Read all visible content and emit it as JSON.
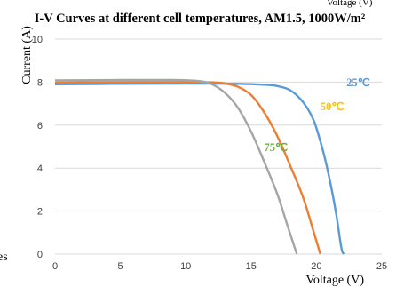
{
  "header": {
    "top_fragment": "Voltage (V)",
    "left_fragment": "es"
  },
  "chart_data": {
    "type": "line",
    "title": "I-V Curves at different cell temperatures, AM1.5, 1000W/m²",
    "xlabel": "Voltage (V)",
    "ylabel": "Current (A)",
    "xlim": [
      0,
      25
    ],
    "ylim": [
      0,
      10
    ],
    "x_ticks": [
      "0",
      "5",
      "10",
      "15",
      "20",
      "25"
    ],
    "y_ticks": [
      "0",
      "2",
      "4",
      "6",
      "8",
      "10"
    ],
    "grid": "horizontal",
    "series": [
      {
        "name": "25℃",
        "color": "#5b9bd5",
        "points": [
          [
            0,
            7.9
          ],
          [
            5,
            7.92
          ],
          [
            10,
            7.93
          ],
          [
            12,
            7.93
          ],
          [
            14,
            7.92
          ],
          [
            16,
            7.88
          ],
          [
            17,
            7.82
          ],
          [
            18,
            7.62
          ],
          [
            19,
            7.05
          ],
          [
            19.8,
            6.2
          ],
          [
            20.5,
            4.8
          ],
          [
            21,
            3.5
          ],
          [
            21.5,
            1.9
          ],
          [
            21.9,
            0.3
          ],
          [
            22.1,
            0
          ]
        ]
      },
      {
        "name": "50℃",
        "color": "#ed7d31",
        "points": [
          [
            0,
            7.98
          ],
          [
            5,
            8.0
          ],
          [
            10,
            8.0
          ],
          [
            12,
            7.99
          ],
          [
            13,
            7.94
          ],
          [
            14,
            7.78
          ],
          [
            15,
            7.4
          ],
          [
            16,
            6.6
          ],
          [
            17,
            5.5
          ],
          [
            18,
            4.1
          ],
          [
            19,
            2.6
          ],
          [
            19.8,
            1.0
          ],
          [
            20.3,
            0
          ]
        ]
      },
      {
        "name": "75℃",
        "color": "#a5a5a5",
        "points": [
          [
            0,
            8.08
          ],
          [
            5,
            8.1
          ],
          [
            9,
            8.1
          ],
          [
            11,
            8.05
          ],
          [
            12,
            7.9
          ],
          [
            13,
            7.5
          ],
          [
            14,
            6.8
          ],
          [
            15,
            5.7
          ],
          [
            16,
            4.3
          ],
          [
            17,
            2.8
          ],
          [
            17.8,
            1.3
          ],
          [
            18.5,
            0
          ]
        ]
      }
    ],
    "annotations": [
      {
        "text": "25℃",
        "x": 22.3,
        "y": 7.8,
        "color": "#5b9bd5"
      },
      {
        "text": "50℃",
        "x": 20.3,
        "y": 6.7,
        "color": "#ffc000"
      },
      {
        "text": "75℃",
        "x": 16.0,
        "y": 4.8,
        "color": "#70ad47"
      }
    ]
  }
}
